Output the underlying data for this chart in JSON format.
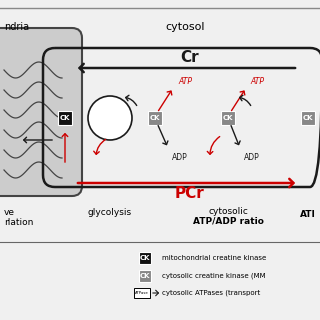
{
  "bg_color": "#f0f0f0",
  "title_cytosol": "cytosol",
  "cr_label": "Cr",
  "pcr_label": "PCr",
  "atp_label": "ATP",
  "adp_label": "ADP",
  "ck_black_bg": "#111111",
  "ck_gray_bg": "#888888",
  "arrow_black": "#1a1a1a",
  "arrow_red": "#cc0000",
  "label_glycolysis": "glycolysis",
  "label_cytosolic": "cytosolic",
  "label_atpadp": "ATP/ADP ratio",
  "label_ati": "ATI",
  "legend_mito_ck": "mitochondrial creatine kinase",
  "legend_cyto_ck": "cytosolic creatine kinase (MM",
  "legend_atpase": "cytosolic ATPases (transport",
  "mito_fill": "#cccccc",
  "mito_edge": "#444444",
  "top_border_color": "#888888"
}
